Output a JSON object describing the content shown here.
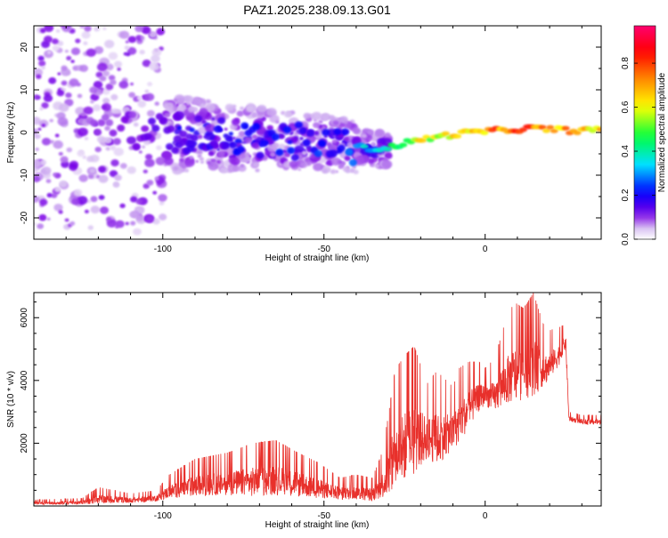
{
  "chart_data": [
    {
      "type": "heatmap",
      "title": "PAZ1.2025.238.09.13.G01",
      "xlabel": "Height of straight line (km)",
      "ylabel": "Frequency (Hz)",
      "xlim": [
        -140,
        36
      ],
      "ylim": [
        -25,
        25
      ],
      "xticks": [
        -100,
        -50,
        0
      ],
      "yticks": [
        -20,
        -10,
        0,
        10,
        20
      ],
      "colorbar": {
        "label": "Normalized spectral amplitude",
        "range": [
          0,
          0.97
        ],
        "ticks": [
          0.0,
          0.2,
          0.4,
          0.6,
          0.8
        ],
        "colormap": [
          "#ffffff",
          "#d9c2f2",
          "#7a00e6",
          "#0000ff",
          "#00e0ff",
          "#00ff40",
          "#ffff00",
          "#ff8800",
          "#ff0000",
          "#ff0070"
        ]
      },
      "ridge": {
        "x": [
          -140,
          -120,
          -100,
          -80,
          -60,
          -45,
          -38,
          -32,
          -25,
          -15,
          -5,
          5,
          15,
          25,
          36
        ],
        "freq": [
          2,
          1.5,
          0,
          -1,
          -2,
          -3,
          -3.5,
          -4,
          -2.5,
          -1,
          0,
          0.5,
          1,
          0.5,
          0.5
        ],
        "amplitude": [
          0.02,
          0.1,
          0.15,
          0.2,
          0.22,
          0.25,
          0.35,
          0.4,
          0.6,
          0.65,
          0.75,
          0.8,
          0.85,
          0.8,
          0.75
        ]
      }
    },
    {
      "type": "line",
      "xlabel": "Height of straight line (km)",
      "ylabel": "SNR (10 * v/v)",
      "xlim": [
        -140,
        36
      ],
      "ylim": [
        0,
        6800
      ],
      "xticks": [
        -100,
        -50,
        0
      ],
      "yticks": [
        2000,
        4000,
        6000
      ],
      "color": "#e8302b",
      "envelope": {
        "x": [
          -140,
          -125,
          -120,
          -110,
          -102,
          -98,
          -90,
          -80,
          -72,
          -65,
          -58,
          -52,
          -45,
          -40,
          -35,
          -32,
          -30,
          -28,
          -25,
          -22,
          -18,
          -15,
          -10,
          -8,
          -5,
          -2,
          0,
          3,
          6,
          9,
          12,
          15,
          18,
          20,
          23,
          25,
          26,
          30,
          36
        ],
        "low": [
          50,
          50,
          80,
          100,
          150,
          250,
          300,
          350,
          300,
          350,
          300,
          250,
          200,
          200,
          150,
          250,
          300,
          500,
          800,
          1000,
          1500,
          1300,
          1800,
          2000,
          2500,
          3000,
          3200,
          3000,
          3200,
          3300,
          3400,
          3500,
          3800,
          4000,
          4500,
          5000,
          2700,
          2600,
          2600
        ],
        "high": [
          200,
          250,
          600,
          400,
          500,
          1000,
          1500,
          1700,
          2000,
          2100,
          1700,
          1400,
          900,
          1000,
          900,
          1700,
          2900,
          4300,
          4800,
          5100,
          3900,
          4300,
          3800,
          4400,
          4600,
          4600,
          4400,
          4700,
          5800,
          6500,
          6300,
          6800,
          5800,
          5600,
          5700,
          5800,
          3000,
          2900,
          2900
        ]
      }
    }
  ]
}
